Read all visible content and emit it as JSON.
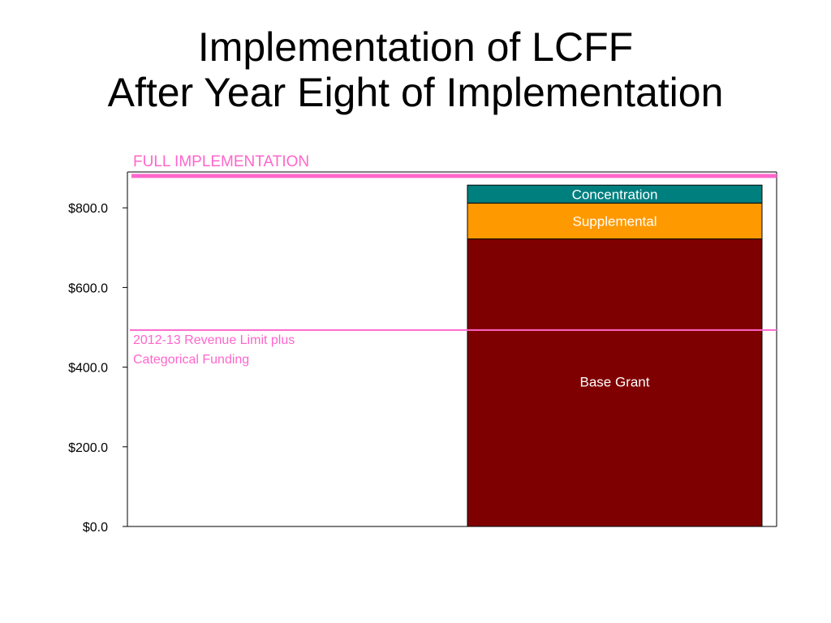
{
  "slide": {
    "title_line1": "Implementation of LCFF",
    "title_line2": "After Year Eight of Implementation"
  },
  "chart_data": {
    "type": "bar",
    "stacked": true,
    "categories": [
      ""
    ],
    "series": [
      {
        "name": "Base Grant",
        "values": [
          722
        ],
        "color": "#7f0000"
      },
      {
        "name": "Supplemental",
        "values": [
          90
        ],
        "color": "#ff9900"
      },
      {
        "name": "Concentration",
        "values": [
          45
        ],
        "color": "#007f7f"
      }
    ],
    "ylim": [
      0,
      890
    ],
    "yticks": [
      0,
      200,
      400,
      600,
      800
    ],
    "ytick_labels": [
      "$0.0",
      "$200.0",
      "$400.0",
      "$600.0",
      "$800.0"
    ],
    "grid": false,
    "legend": "none",
    "reference_lines": [
      {
        "label": "FULL IMPLEMENTATION",
        "value": 880,
        "color": "#ff66cc"
      },
      {
        "label_lines": [
          "2012-13 Revenue Limit plus",
          "Categorical Funding"
        ],
        "value": 493,
        "color": "#ff66cc"
      }
    ]
  }
}
